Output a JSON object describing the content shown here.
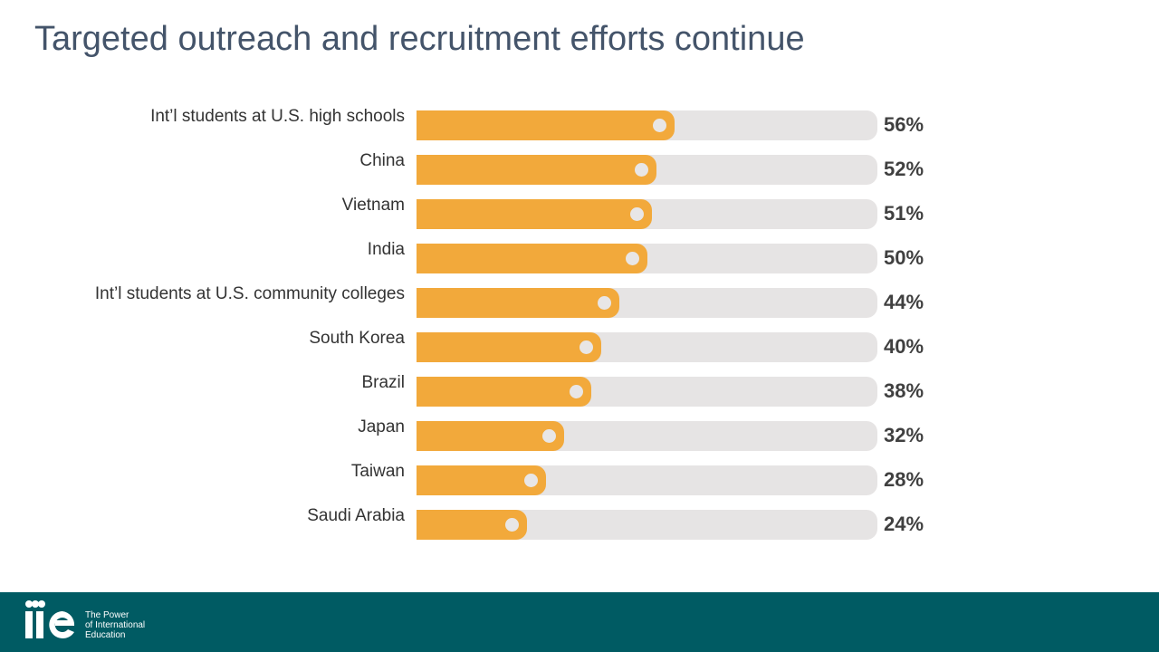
{
  "title": "Targeted outreach and recruitment efforts continue",
  "chart_data": {
    "type": "bar",
    "orientation": "horizontal",
    "categories": [
      "Int’l students at U.S. high schools",
      "China",
      "Vietnam",
      "India",
      "Int’l students at U.S. community colleges",
      "South Korea",
      "Brazil",
      "Japan",
      "Taiwan",
      "Saudi Arabia"
    ],
    "values": [
      56,
      52,
      51,
      50,
      44,
      40,
      38,
      32,
      28,
      24
    ],
    "value_labels": [
      "56%",
      "52%",
      "51%",
      "50%",
      "44%",
      "40%",
      "38%",
      "32%",
      "28%",
      "24%"
    ],
    "xlim": [
      0,
      100
    ],
    "grid": false,
    "legend": "none",
    "colors": {
      "fill": "#f2a93b",
      "track": "#e6e4e4",
      "label": "#404040"
    }
  },
  "footer": {
    "background": "#005b63",
    "logo": {
      "mark_text": "iie",
      "tagline": [
        "The Power",
        "of International",
        "Education"
      ]
    }
  }
}
